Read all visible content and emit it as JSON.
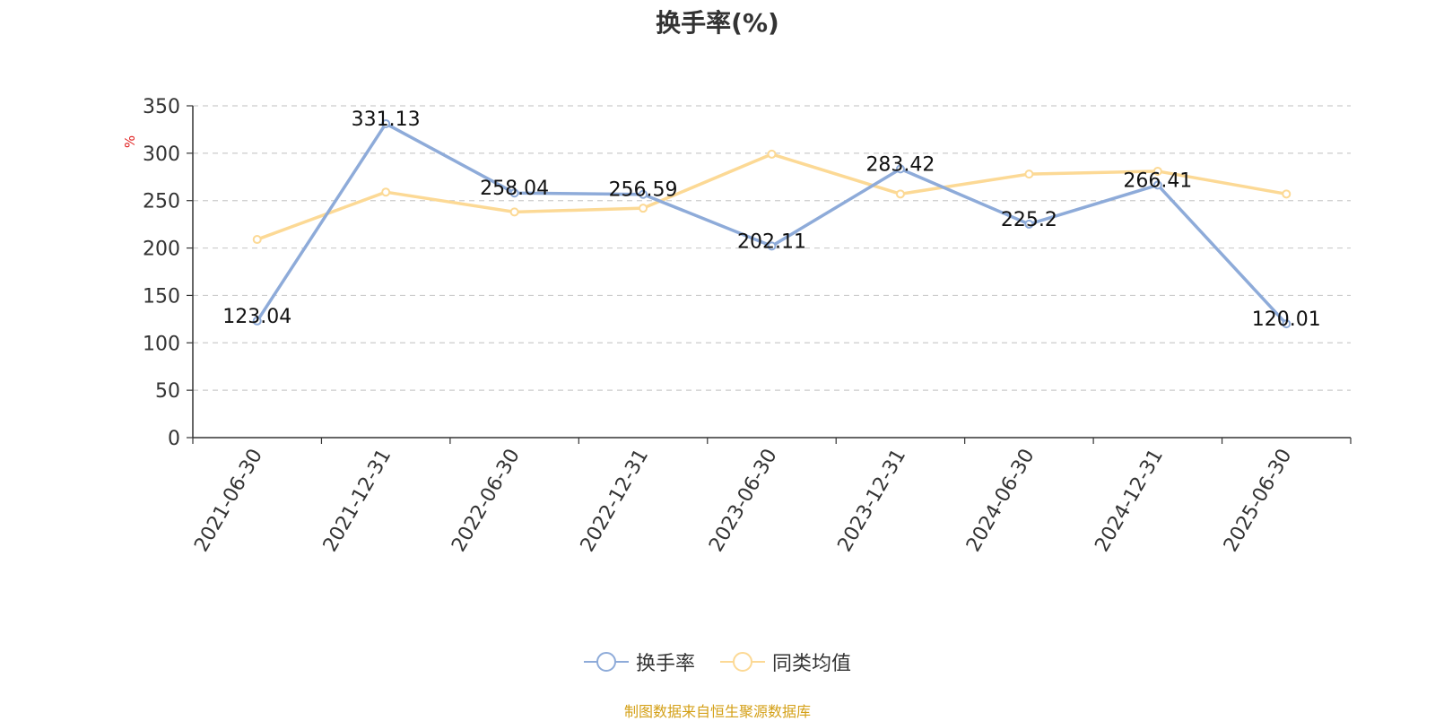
{
  "chart_data": {
    "type": "line",
    "title": "换手率(%)",
    "ylabel": "%",
    "ylim": [
      0,
      350
    ],
    "yticks": [
      0,
      50,
      100,
      150,
      200,
      250,
      300,
      350
    ],
    "categories": [
      "2021-06-30",
      "2021-12-31",
      "2022-06-30",
      "2022-12-31",
      "2023-06-30",
      "2023-12-31",
      "2024-06-30",
      "2024-12-31",
      "2025-06-30"
    ],
    "series": [
      {
        "name": "换手率",
        "color": "#8eabd9",
        "values": [
          123.04,
          331.13,
          258.04,
          256.59,
          202.11,
          283.42,
          225.2,
          266.41,
          120.01
        ],
        "labels": [
          "123.04",
          "331.13",
          "258.04",
          "256.59",
          "202.11",
          "283.42",
          "225.2",
          "266.41",
          "120.01"
        ]
      },
      {
        "name": "同类均值",
        "color": "#fcd995",
        "values": [
          209,
          259,
          238,
          242,
          299,
          257,
          278,
          281,
          257
        ]
      }
    ],
    "grid": true,
    "legend_position": "bottom"
  },
  "source_note": "制图数据来自恒生聚源数据库",
  "colors": {
    "axis": "#333333",
    "grid": "#cccccc",
    "ylabel": "#e02020",
    "source_note": "#d4a017"
  }
}
